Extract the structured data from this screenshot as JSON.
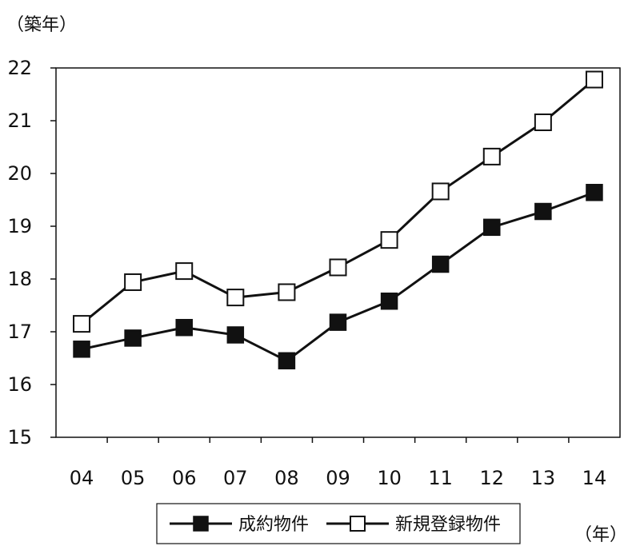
{
  "chart_data": {
    "type": "line",
    "y_unit_label": "（築年）",
    "x_unit_label": "（年）",
    "categories": [
      "04",
      "05",
      "06",
      "07",
      "08",
      "09",
      "10",
      "11",
      "12",
      "13",
      "14"
    ],
    "ylim": [
      15,
      22
    ],
    "yticks": [
      15,
      16,
      17,
      18,
      19,
      20,
      21,
      22
    ],
    "grid": false,
    "legend_position": "bottom",
    "series": [
      {
        "name": "成約物件",
        "marker": "filled-square",
        "color": "#111111",
        "values": [
          16.67,
          16.88,
          17.08,
          16.94,
          16.45,
          17.18,
          17.58,
          18.28,
          18.98,
          19.28,
          19.64
        ]
      },
      {
        "name": "新規登録物件",
        "marker": "open-square",
        "color": "#111111",
        "values": [
          17.15,
          17.94,
          18.15,
          17.65,
          17.75,
          18.22,
          18.74,
          19.66,
          20.32,
          20.97,
          21.78
        ]
      }
    ]
  }
}
